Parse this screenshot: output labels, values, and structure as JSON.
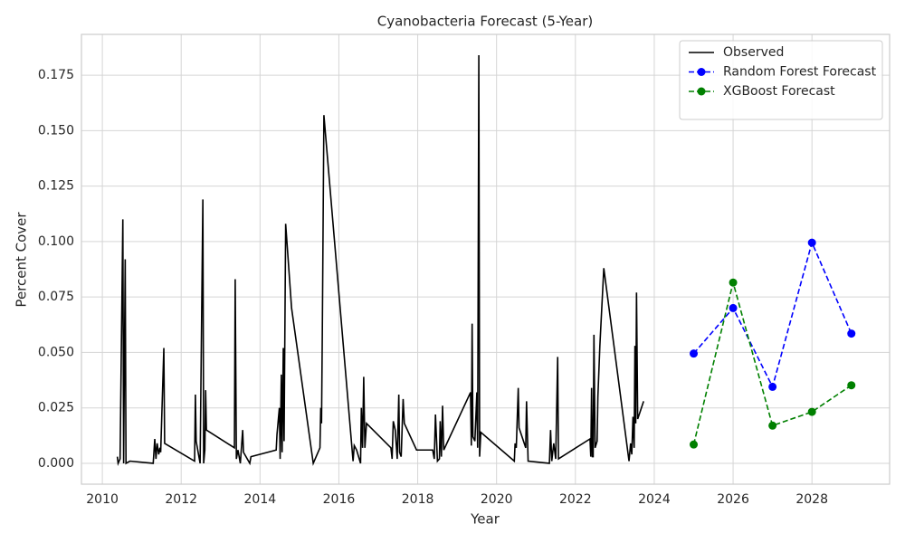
{
  "chart_data": {
    "type": "line",
    "title": "Cyanobacteria Forecast (5-Year)",
    "xlabel": "Year",
    "ylabel": "Percent Cover",
    "xlim": [
      2009.47,
      2029.97
    ],
    "ylim": [
      -0.0094,
      0.1934
    ],
    "xticks": [
      2010,
      2012,
      2014,
      2016,
      2018,
      2020,
      2022,
      2024,
      2026,
      2028
    ],
    "yticks": [
      {
        "value": 0,
        "label": "0.000"
      },
      0.025,
      {
        "value": 0.05,
        "label": "0.050"
      },
      0.075,
      {
        "value": 0.1,
        "label": "0.100"
      },
      0.125,
      {
        "value": 0.15,
        "label": "0.150"
      },
      0.175
    ],
    "grid": true,
    "legend": "upper right",
    "series": [
      {
        "name": "Observed",
        "color": "#000000",
        "linestyle": "solid",
        "x": [
          2010.38,
          2010.4,
          2010.45,
          2010.52,
          2010.54,
          2010.58,
          2010.6,
          2010.7,
          2011.29,
          2011.33,
          2011.36,
          2011.39,
          2011.43,
          2011.46,
          2011.48,
          2011.56,
          2011.58,
          2012.34,
          2012.36,
          2012.38,
          2012.48,
          2012.55,
          2012.57,
          2012.6,
          2012.62,
          2012.64,
          2013.35,
          2013.37,
          2013.4,
          2013.44,
          2013.5,
          2013.56,
          2013.58,
          2013.74,
          2013.77,
          2014.41,
          2014.43,
          2014.49,
          2014.51,
          2014.54,
          2014.56,
          2014.59,
          2014.61,
          2014.65,
          2014.8,
          2015.35,
          2015.52,
          2015.54,
          2015.56,
          2015.58,
          2015.62,
          2015.7,
          2016.36,
          2016.39,
          2016.45,
          2016.55,
          2016.57,
          2016.6,
          2016.63,
          2016.66,
          2016.7,
          2017.32,
          2017.35,
          2017.38,
          2017.43,
          2017.48,
          2017.52,
          2017.54,
          2017.58,
          2017.63,
          2017.66,
          2017.97,
          2018.38,
          2018.42,
          2018.45,
          2018.5,
          2018.55,
          2018.57,
          2018.6,
          2018.63,
          2018.66,
          2019.34,
          2019.36,
          2019.38,
          2019.4,
          2019.45,
          2019.5,
          2019.52,
          2019.55,
          2019.57,
          2019.6,
          2020.45,
          2020.47,
          2020.5,
          2020.55,
          2020.57,
          2020.74,
          2020.76,
          2020.8,
          2021.34,
          2021.37,
          2021.4,
          2021.45,
          2021.5,
          2021.55,
          2021.57,
          2022.37,
          2022.39,
          2022.41,
          2022.43,
          2022.45,
          2022.47,
          2022.5,
          2022.55,
          2022.57,
          2022.62,
          2022.72,
          2023.36,
          2023.4,
          2023.43,
          2023.46,
          2023.49,
          2023.51,
          2023.53,
          2023.55,
          2023.58,
          2023.73
        ],
        "values": [
          0.003,
          0,
          0.002,
          0.11,
          0,
          0.092,
          0,
          0.001,
          0,
          0.011,
          0.002,
          0.009,
          0.004,
          0.007,
          0.005,
          0.052,
          0.009,
          0.001,
          0.031,
          0.01,
          0,
          0.119,
          0,
          0.006,
          0.033,
          0.015,
          0.007,
          0.083,
          0.002,
          0.006,
          0,
          0.015,
          0.005,
          0,
          0.003,
          0.006,
          0.013,
          0.025,
          0.002,
          0.04,
          0.005,
          0.052,
          0.01,
          0.108,
          0.07,
          0,
          0.007,
          0.025,
          0.018,
          0.059,
          0.157,
          0.14,
          0.001,
          0.008,
          0.006,
          0,
          0.025,
          0.007,
          0.039,
          0.007,
          0.018,
          0.007,
          0.002,
          0.019,
          0.015,
          0.002,
          0.031,
          0.005,
          0.003,
          0.029,
          0.018,
          0.006,
          0.006,
          0.002,
          0.022,
          0.001,
          0.002,
          0.019,
          0.003,
          0.026,
          0.006,
          0.032,
          0.008,
          0.063,
          0.012,
          0.01,
          0.032,
          0.007,
          0.184,
          0.003,
          0.014,
          0.001,
          0.009,
          0.007,
          0.034,
          0.016,
          0.007,
          0.028,
          0.001,
          0,
          0.015,
          0.001,
          0.009,
          0.002,
          0.048,
          0.002,
          0.011,
          0.003,
          0.034,
          0.003,
          0.003,
          0.058,
          0.007,
          0.01,
          0.03,
          0.053,
          0.088,
          0.001,
          0.009,
          0.004,
          0.021,
          0.007,
          0.053,
          0.018,
          0.077,
          0.02,
          0.028
        ]
      },
      {
        "name": "Random Forest Forecast",
        "color": "#0000ff",
        "linestyle": "dashed",
        "marker": "o",
        "x": [
          2025,
          2026,
          2027,
          2028,
          2029
        ],
        "values": [
          0.0495,
          0.07,
          0.0345,
          0.0995,
          0.0585
        ]
      },
      {
        "name": "XGBoost Forecast",
        "color": "#008000",
        "linestyle": "dashed",
        "marker": "o",
        "x": [
          2025,
          2026,
          2027,
          2028,
          2029
        ],
        "values": [
          0.0085,
          0.0815,
          0.017,
          0.0232,
          0.0352
        ]
      }
    ]
  }
}
